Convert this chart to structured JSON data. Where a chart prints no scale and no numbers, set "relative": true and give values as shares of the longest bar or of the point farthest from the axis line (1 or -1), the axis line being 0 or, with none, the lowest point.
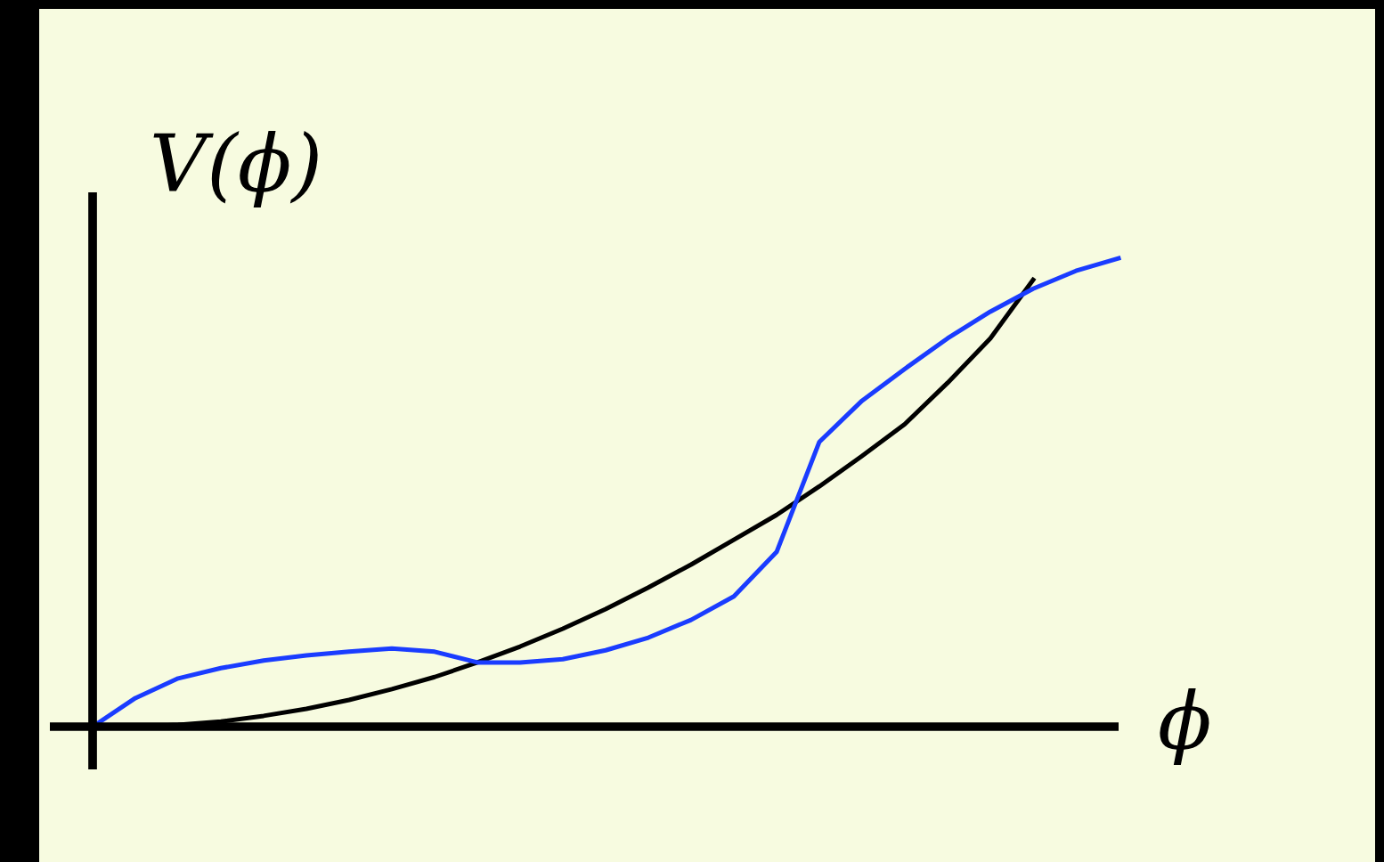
{
  "chart_data": {
    "type": "line",
    "relative": true,
    "xlabel": "ϕ",
    "ylabel": "V(ϕ)",
    "marker": "none",
    "line_style": "solid",
    "categories": [
      null,
      null,
      null,
      null,
      null,
      null,
      null,
      null,
      null,
      null,
      null,
      null,
      null,
      null,
      null,
      null,
      null,
      null,
      null,
      null,
      null,
      null,
      null,
      null,
      null
    ],
    "series": [
      {
        "color": "#000000",
        "values": [
          0,
          0,
          0.004,
          0.011,
          0.023,
          0.038,
          0.057,
          0.08,
          0.106,
          0.137,
          0.171,
          0.209,
          0.251,
          0.297,
          0.346,
          0.399,
          0.452,
          0.513,
          0.578,
          0.646,
          0.734,
          0.829,
          0.954,
          null,
          null
        ]
      },
      {
        "color": "#1a3cff",
        "values": [
          0,
          0.061,
          0.103,
          0.125,
          0.141,
          0.152,
          0.16,
          0.167,
          0.16,
          0.137,
          0.137,
          0.144,
          0.163,
          0.19,
          0.228,
          0.278,
          0.373,
          0.608,
          0.696,
          0.764,
          0.829,
          0.886,
          0.935,
          0.973,
          1
        ]
      }
    ]
  }
}
